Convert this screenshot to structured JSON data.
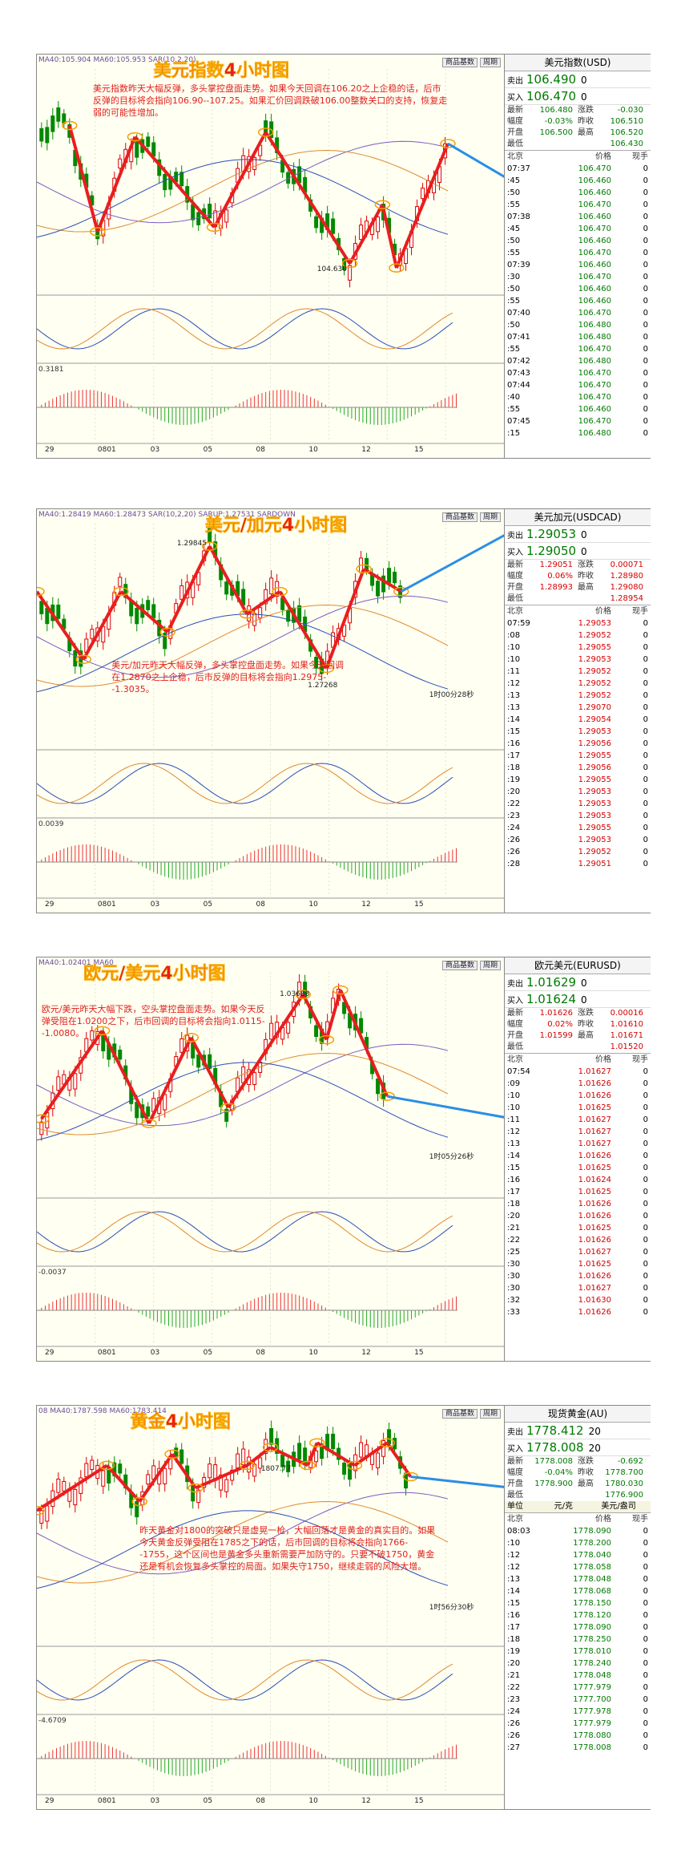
{
  "common": {
    "columns": [
      "北京",
      "价格",
      "现手"
    ],
    "sell": "卖出",
    "buy": "买入",
    "buttons": [
      "商品基数",
      "周期"
    ]
  },
  "panels": [
    {
      "title": "美元指数4小时图",
      "header": "MA40:105.904  MA60:105.953  SAR(10,2,20)",
      "note": "美元指数昨天大幅反弹，多头掌控盘面走势。如果今天回调在106.20之上企稳的话，后市反弹的目标将会指向106.90--107.25。如果汇价回调跌破106.00整数关口的支持，恢复走弱的可能性增加。",
      "labels": [
        "104.630"
      ],
      "osc": "0.3181",
      "x_labels": [
        "29",
        "0801",
        "03",
        "05",
        "08",
        "10",
        "12",
        "15"
      ],
      "tick_color": "#007a00",
      "quote": {
        "name": "美元指数(USD)",
        "sell": [
          "106.490",
          "0"
        ],
        "buy": [
          "106.470",
          "0"
        ],
        "stats": [
          [
            [
              "最新",
              "106.480"
            ],
            [
              "涨跌",
              "-0.030"
            ]
          ],
          [
            [
              "幅度",
              "-0.03%"
            ],
            [
              "昨收",
              "106.510"
            ]
          ],
          [
            [
              "开盘",
              "106.500"
            ],
            [
              "最高",
              "106.520"
            ]
          ],
          [
            [
              "最低",
              "106.430"
            ]
          ]
        ],
        "ticks": [
          [
            "07:37",
            "106.470",
            "0"
          ],
          [
            ":45",
            "106.460",
            "0"
          ],
          [
            ":50",
            "106.460",
            "0"
          ],
          [
            ":55",
            "106.470",
            "0"
          ],
          [
            "07:38",
            "106.460",
            "0"
          ],
          [
            ":45",
            "106.470",
            "0"
          ],
          [
            ":50",
            "106.460",
            "0"
          ],
          [
            ":55",
            "106.470",
            "0"
          ],
          [
            "07:39",
            "106.460",
            "0"
          ],
          [
            ":30",
            "106.470",
            "0"
          ],
          [
            ":50",
            "106.460",
            "0"
          ],
          [
            ":55",
            "106.460",
            "0"
          ],
          [
            "07:40",
            "106.470",
            "0"
          ],
          [
            ":50",
            "106.480",
            "0"
          ],
          [
            "07:41",
            "106.480",
            "0"
          ],
          [
            ":55",
            "106.470",
            "0"
          ],
          [
            "07:42",
            "106.480",
            "0"
          ],
          [
            "07:43",
            "106.470",
            "0"
          ],
          [
            "07:44",
            "106.470",
            "0"
          ],
          [
            ":40",
            "106.470",
            "0"
          ],
          [
            ":55",
            "106.460",
            "0"
          ],
          [
            "07:45",
            "106.470",
            "0"
          ],
          [
            ":15",
            "106.480",
            "0"
          ]
        ]
      }
    },
    {
      "title": "美元/加元4小时图",
      "header": "MA40:1.28419  MA60:1.28473  SAR(10,2,20)  SARUP:1.27531  SARDOWN",
      "note": "美元/加元昨天大幅反弹，多头掌控盘面走势。如果今天回调在1.2870之上企稳，后市反弹的目标将会指向1.2975--1.3035。",
      "labels": [
        "1.29845",
        "1.27268"
      ],
      "timer": "1时00分28秒",
      "osc": "0.0039",
      "x_labels": [
        "29",
        "0801",
        "03",
        "05",
        "08",
        "10",
        "12",
        "15"
      ],
      "tick_color": "#d40000",
      "quote": {
        "name": "美元加元(USDCAD)",
        "sell": [
          "1.29053",
          "0"
        ],
        "buy": [
          "1.29050",
          "0"
        ],
        "stats": [
          [
            [
              "最新",
              "1.29051"
            ],
            [
              "涨跌",
              "0.00071"
            ]
          ],
          [
            [
              "幅度",
              "0.06%"
            ],
            [
              "昨收",
              "1.28980"
            ]
          ],
          [
            [
              "开盘",
              "1.28993"
            ],
            [
              "最高",
              "1.29080"
            ]
          ],
          [
            [
              "最低",
              "1.28954"
            ]
          ]
        ],
        "ticks": [
          [
            "07:59",
            "1.29053",
            "0"
          ],
          [
            ":08",
            "1.29052",
            "0"
          ],
          [
            ":10",
            "1.29055",
            "0"
          ],
          [
            ":10",
            "1.29053",
            "0"
          ],
          [
            ":11",
            "1.29052",
            "0"
          ],
          [
            ":12",
            "1.29052",
            "0"
          ],
          [
            ":13",
            "1.29052",
            "0"
          ],
          [
            ":13",
            "1.29070",
            "0"
          ],
          [
            ":14",
            "1.29054",
            "0"
          ],
          [
            ":15",
            "1.29053",
            "0"
          ],
          [
            ":16",
            "1.29056",
            "0"
          ],
          [
            ":17",
            "1.29055",
            "0"
          ],
          [
            ":18",
            "1.29056",
            "0"
          ],
          [
            ":19",
            "1.29055",
            "0"
          ],
          [
            ":20",
            "1.29053",
            "0"
          ],
          [
            ":22",
            "1.29053",
            "0"
          ],
          [
            ":23",
            "1.29053",
            "0"
          ],
          [
            ":24",
            "1.29055",
            "0"
          ],
          [
            ":26",
            "1.29053",
            "0"
          ],
          [
            ":26",
            "1.29052",
            "0"
          ],
          [
            ":28",
            "1.29051",
            "0"
          ]
        ]
      }
    },
    {
      "title": "欧元/美元4小时图",
      "header": "MA40:1.02401  MA60",
      "note": "欧元/美元昨天大幅下跌，空头掌控盘面走势。如果今天反弹受阻在1.0200之下，后市回调的目标将会指向1.0115--1.0080。",
      "labels": [
        "1.03688"
      ],
      "timer": "1时05分26秒",
      "osc": "-0.0037",
      "x_labels": [
        "29",
        "0801",
        "03",
        "05",
        "08",
        "10",
        "12",
        "15"
      ],
      "tick_color": "#d40000",
      "quote": {
        "name": "欧元美元(EURUSD)",
        "sell": [
          "1.01629",
          "0"
        ],
        "buy": [
          "1.01624",
          "0"
        ],
        "stats": [
          [
            [
              "最新",
              "1.01626"
            ],
            [
              "涨跌",
              "0.00016"
            ]
          ],
          [
            [
              "幅度",
              "0.02%"
            ],
            [
              "昨收",
              "1.01610"
            ]
          ],
          [
            [
              "开盘",
              "1.01599"
            ],
            [
              "最高",
              "1.01671"
            ]
          ],
          [
            [
              "最低",
              "1.01520"
            ]
          ]
        ],
        "ticks": [
          [
            "07:54",
            "1.01627",
            "0"
          ],
          [
            ":09",
            "1.01626",
            "0"
          ],
          [
            ":10",
            "1.01626",
            "0"
          ],
          [
            ":10",
            "1.01625",
            "0"
          ],
          [
            ":11",
            "1.01627",
            "0"
          ],
          [
            ":12",
            "1.01627",
            "0"
          ],
          [
            ":13",
            "1.01627",
            "0"
          ],
          [
            ":14",
            "1.01626",
            "0"
          ],
          [
            ":15",
            "1.01625",
            "0"
          ],
          [
            ":16",
            "1.01624",
            "0"
          ],
          [
            ":17",
            "1.01625",
            "0"
          ],
          [
            ":18",
            "1.01626",
            "0"
          ],
          [
            ":20",
            "1.01626",
            "0"
          ],
          [
            ":21",
            "1.01625",
            "0"
          ],
          [
            ":22",
            "1.01626",
            "0"
          ],
          [
            ":25",
            "1.01627",
            "0"
          ],
          [
            ":30",
            "1.01625",
            "0"
          ],
          [
            ":30",
            "1.01626",
            "0"
          ],
          [
            ":30",
            "1.01627",
            "0"
          ],
          [
            ":32",
            "1.01630",
            "0"
          ],
          [
            ":33",
            "1.01626",
            "0"
          ]
        ]
      }
    },
    {
      "title": "黄金4小时图",
      "header": "08 MA40:1787.598  MA60:1783.414",
      "note": "昨天黄金对1800的突破只是虚晃一枪，大幅回落才是黄金的真实目的。如果今天黄金反弹受阻在1785之下的话，后市回调的目标将会指向1766--1755，这个区间也是黄金多头重新需要严加防守的。只要不破1750，黄金还是有机会恢复多头掌控的局面。如果失守1750，继续走弱的风险大增。",
      "labels": [
        "1807.77"
      ],
      "timer": "1时56分30秒",
      "osc": "-4.6709",
      "x_labels": [
        "29",
        "0801",
        "03",
        "05",
        "08",
        "10",
        "12",
        "15"
      ],
      "tick_color": "#007a00",
      "quote": {
        "name": "现货黄金(AU)",
        "sell": [
          "1778.412",
          "20"
        ],
        "buy": [
          "1778.008",
          "20"
        ],
        "stats": [
          [
            [
              "最新",
              "1778.008"
            ],
            [
              "涨跌",
              "-0.692"
            ]
          ],
          [
            [
              "幅度",
              "-0.04%"
            ],
            [
              "昨收",
              "1778.700"
            ]
          ],
          [
            [
              "开盘",
              "1778.900"
            ],
            [
              "最高",
              "1780.030"
            ]
          ],
          [
            [
              "最低",
              "1776.900"
            ]
          ]
        ],
        "unit": [
          "单位",
          "元/克",
          "美元/盎司"
        ],
        "ticks": [
          [
            "08:03",
            "1778.090",
            "0"
          ],
          [
            ":10",
            "1778.200",
            "0"
          ],
          [
            ":12",
            "1778.040",
            "0"
          ],
          [
            ":12",
            "1778.058",
            "0"
          ],
          [
            ":13",
            "1778.048",
            "0"
          ],
          [
            ":14",
            "1778.068",
            "0"
          ],
          [
            ":15",
            "1778.150",
            "0"
          ],
          [
            ":16",
            "1778.120",
            "0"
          ],
          [
            ":17",
            "1778.090",
            "0"
          ],
          [
            ":18",
            "1778.250",
            "0"
          ],
          [
            ":19",
            "1778.010",
            "0"
          ],
          [
            ":20",
            "1778.240",
            "0"
          ],
          [
            ":21",
            "1778.048",
            "0"
          ],
          [
            ":22",
            "1777.979",
            "0"
          ],
          [
            ":23",
            "1777.700",
            "0"
          ],
          [
            ":24",
            "1777.978",
            "0"
          ],
          [
            ":26",
            "1777.979",
            "0"
          ],
          [
            ":26",
            "1778.080",
            "0"
          ],
          [
            ":27",
            "1778.008",
            "0"
          ]
        ]
      }
    }
  ]
}
